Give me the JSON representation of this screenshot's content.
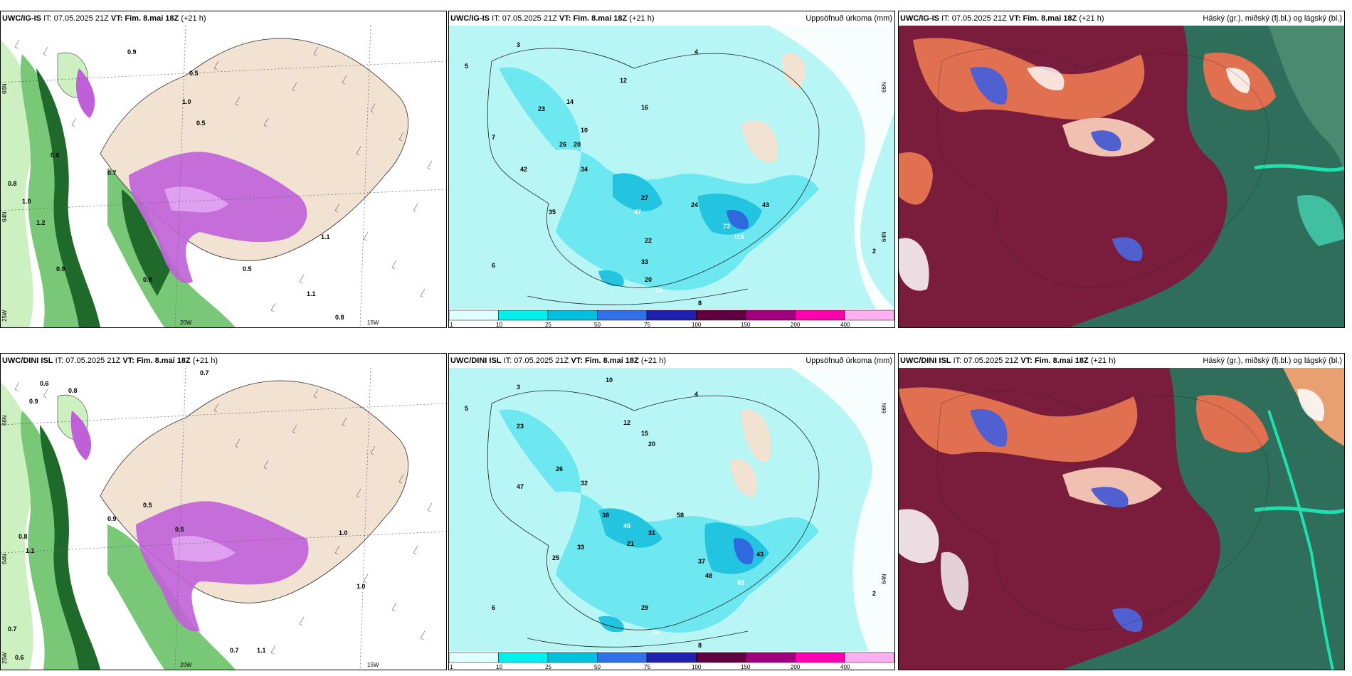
{
  "rows": [
    {
      "model": "UWC/IG-IS",
      "panels": [
        {
          "id": "wind",
          "model": "UWC/IG-IS",
          "it_label": "IT:",
          "it": "07.05.2025 21Z",
          "vt_label": "VT:",
          "vt": "Fim. 8.mai 18Z",
          "lead": "(+21 h)",
          "right": ""
        },
        {
          "id": "precip",
          "model": "UWC/IG-IS",
          "it_label": "IT:",
          "it": "07.05.2025 21Z",
          "vt_label": "VT:",
          "vt": "Fim. 8.mai 18Z",
          "lead": "(+21 h)",
          "right": "Uppsöfnuð úrkoma (mm)"
        },
        {
          "id": "cloud",
          "model": "UWC/IG-IS",
          "it_label": "IT:",
          "it": "07.05.2025 21Z",
          "vt_label": "VT:",
          "vt": "Fim. 8.mai 18Z",
          "lead": "(+21 h)",
          "right": "Háský (gr.), miðský (fj.bl.) og lágský (bl.)"
        }
      ],
      "axis_labels": {
        "lat_top": "66N",
        "lat_mid": "64N",
        "lon_left": "25W",
        "lon_mid": "20W",
        "lon_right": "15W"
      },
      "precip_numbers": [
        "3",
        "5",
        "7",
        "12",
        "16",
        "23",
        "14",
        "10",
        "26",
        "20",
        "42",
        "34",
        "27",
        "35",
        "47",
        "24",
        "43",
        "73",
        "115",
        "22",
        "33",
        "20",
        "74",
        "8",
        "4",
        "2",
        "6"
      ],
      "wind_numbers": [
        "0.9",
        "0.5",
        "1.0",
        "0.5",
        "0.6",
        "0.8",
        "1.2",
        "1.0",
        "0.9",
        "1.1",
        "0.7",
        "0.5",
        "0.9",
        "1.1",
        "0.8"
      ]
    },
    {
      "model": "UWC/DINI ISL",
      "panels": [
        {
          "id": "wind",
          "model": "UWC/DINI ISL",
          "it_label": "IT:",
          "it": "07.05.2025 21Z",
          "vt_label": "VT:",
          "vt": "Fim. 8.mai 18Z",
          "lead": "(+21 h)",
          "right": ""
        },
        {
          "id": "precip",
          "model": "UWC/DINI ISL",
          "it_label": "IT:",
          "it": "07.05.2025 21Z",
          "vt_label": "VT:",
          "vt": "Fim. 8.mai 18Z",
          "lead": "(+21 h)",
          "right": "Uppsöfnuð úrkoma (mm)"
        },
        {
          "id": "cloud",
          "model": "UWC/DINI ISL",
          "it_label": "IT:",
          "it": "07.05.2025 21Z",
          "vt_label": "VT:",
          "vt": "Fim. 8.mai 18Z",
          "lead": "(+21 h)",
          "right": "Háský (gr.), miðský (fj.bl.) og lágský (bl.)"
        }
      ],
      "axis_labels": {
        "lat_top": "66N",
        "lat_mid": "64N",
        "lon_left": "25W",
        "lon_mid": "20W",
        "lon_right": "15W"
      },
      "precip_numbers": [
        "3",
        "5",
        "10",
        "12",
        "15",
        "23",
        "20",
        "32",
        "26",
        "47",
        "31",
        "38",
        "40",
        "58",
        "21",
        "33",
        "25",
        "37",
        "48",
        "85",
        "43",
        "29",
        "74",
        "8",
        "4",
        "2",
        "6"
      ],
      "wind_numbers": [
        "0.7",
        "0.6",
        "0.8",
        "0.9",
        "1.0",
        "0.5",
        "0.8",
        "1.1",
        "0.7",
        "0.5",
        "0.9",
        "1.1",
        "0.7",
        "0.6",
        "1.0"
      ]
    }
  ],
  "colorbar": {
    "ticks": [
      "1",
      "10",
      "25",
      "50",
      "75",
      "100",
      "150",
      "200",
      "400"
    ],
    "colors": [
      "#e0ffff",
      "#00f0f0",
      "#00c0e0",
      "#3070e8",
      "#2020b0",
      "#600040",
      "#a00080",
      "#ff00b0",
      "#ffb0f0"
    ]
  },
  "colors": {
    "land": "#f2e2d2",
    "sea_precip": "#b8f6f6",
    "precip_light": "#6ee8f0",
    "precip_mid": "#22c4e0",
    "precip_heavy": "#3068e0",
    "wind_light": "#cdf0c0",
    "wind_mid": "#78c878",
    "wind_dark": "#1f6a2a",
    "wind_purple": "#c060d8",
    "cloud_maroon": "#7a1c3c",
    "cloud_teal": "#2f6e5a",
    "cloud_orange": "#e07050",
    "cloud_blue": "#5060d0"
  }
}
